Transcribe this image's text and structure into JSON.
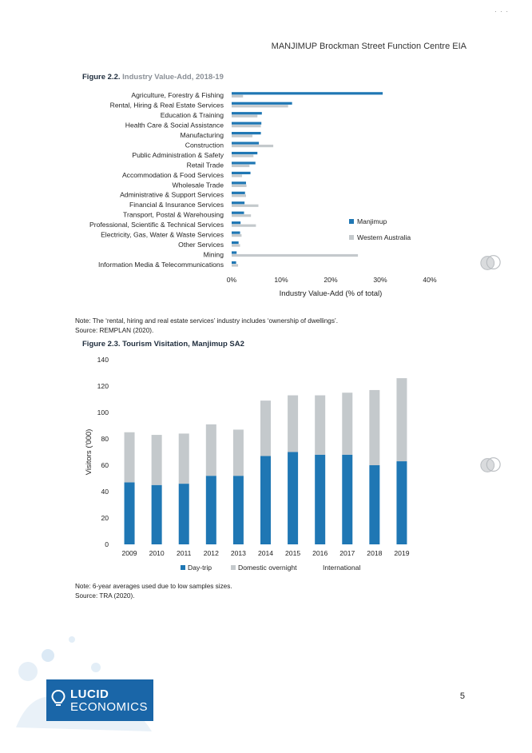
{
  "header": {
    "title": "MANJIMUP Brockman Street Function Centre EIA"
  },
  "figure22": {
    "label": "Figure 2.2.",
    "title": "Industry Value-Add, 2018-19"
  },
  "figure23": {
    "label": "Figure 2.3.",
    "title": "Tourism Visitation, Manjimup SA2"
  },
  "note1": {
    "line1": "Note: The ‘rental, hiring and real estate services’ industry includes ‘ownership of dwellings’.",
    "line2": "Source: REMPLAN (2020)."
  },
  "note2": {
    "line1": "Note: 6-year averages used due to low samples sizes.",
    "line2": "Source: TRA (2020)."
  },
  "page_number": "5",
  "logo": {
    "line1": "LUCID",
    "line2": "ECONOMICS"
  },
  "colors": {
    "primary": "#1f77b4",
    "secondary": "#c4c9cc",
    "logo_bg": "#1a66a8"
  },
  "chart_data": [
    {
      "type": "bar",
      "orientation": "horizontal",
      "categories": [
        "Agriculture, Forestry & Fishing",
        "Rental, Hiring & Real Estate Services",
        "Education & Training",
        "Health Care & Social Assistance",
        "Manufacturing",
        "Construction",
        "Public Administration & Safety",
        "Retail Trade",
        "Accommodation & Food Services",
        "Wholesale Trade",
        "Administrative & Support Services",
        "Financial & Insurance Services",
        "Transport, Postal & Warehousing",
        "Professional, Scientific & Technical Services",
        "Electricity, Gas, Water & Waste Services",
        "Other Services",
        "Mining",
        "Information Media & Telecommunications"
      ],
      "series": [
        {
          "name": "Manjimup",
          "color": "#1f77b4",
          "values": [
            30.5,
            12.2,
            6.1,
            6.0,
            5.9,
            5.5,
            5.2,
            4.8,
            3.8,
            2.9,
            2.7,
            2.6,
            2.5,
            1.8,
            1.7,
            1.4,
            1.0,
            0.9
          ]
        },
        {
          "name": "Western Australia",
          "color": "#c4c9cc",
          "values": [
            2.3,
            11.4,
            5.2,
            5.9,
            4.2,
            8.4,
            4.4,
            3.6,
            2.1,
            3.0,
            2.9,
            5.4,
            3.9,
            4.9,
            2.0,
            1.7,
            25.5,
            1.3
          ]
        }
      ],
      "xlabel": "Industry Value-Add (% of total)",
      "xlim": [
        0,
        40
      ],
      "xticks": [
        "0%",
        "10%",
        "20%",
        "30%",
        "40%"
      ],
      "legend": "right"
    },
    {
      "type": "bar",
      "stacked": true,
      "categories": [
        "2009",
        "2010",
        "2011",
        "2012",
        "2013",
        "2014",
        "2015",
        "2016",
        "2017",
        "2018",
        "2019"
      ],
      "series": [
        {
          "name": "Day-trip",
          "color": "#1f77b4",
          "values": [
            47,
            45,
            46,
            52,
            52,
            67,
            70,
            68,
            68,
            60,
            63
          ]
        },
        {
          "name": "Domestic overnight",
          "color": "#c4c9cc",
          "values": [
            38,
            38,
            38,
            39,
            35,
            42,
            43,
            45,
            47,
            57,
            63
          ]
        },
        {
          "name": "International",
          "color": "#e8e8e8",
          "values": [
            0,
            0,
            0,
            0,
            0,
            0,
            0,
            0,
            0,
            0,
            0
          ]
        }
      ],
      "ylabel": "Visitors ('000)",
      "ylim": [
        0,
        140
      ],
      "yticks": [
        "0",
        "20",
        "40",
        "60",
        "80",
        "100",
        "120",
        "140"
      ],
      "legend": "bottom"
    }
  ]
}
